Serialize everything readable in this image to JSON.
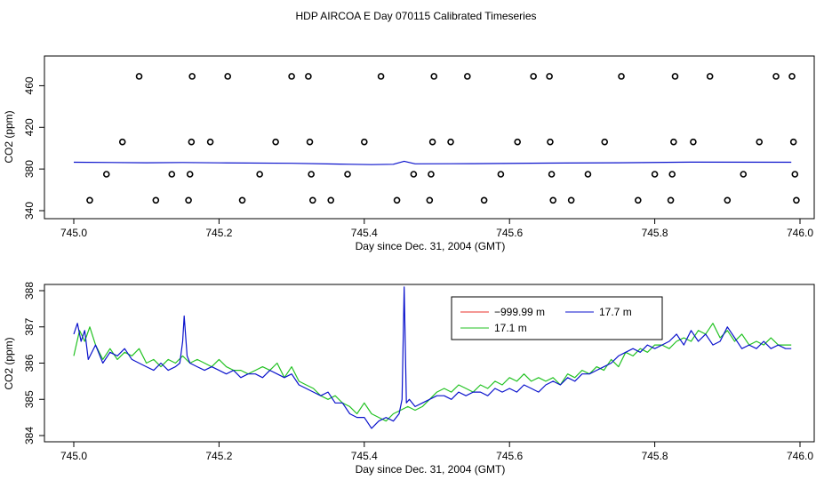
{
  "title": "HDP AIRCOA E  Day 070115  Calibrated Timeseries",
  "colors": {
    "red": "#e8302a",
    "green": "#22c222",
    "blue": "#0a12cc",
    "axis": "#000000"
  },
  "chart_data": [
    {
      "type": "scatter",
      "xlabel": "Day since Dec. 31, 2004 (GMT)",
      "ylabel": "CO2 (ppm)",
      "xlim": [
        745.0,
        746.0
      ],
      "ylim": [
        340,
        480
      ],
      "xticks": [
        "745.0",
        "745.2",
        "745.4",
        "745.6",
        "745.8",
        "746.0"
      ],
      "yticks": [
        "340",
        "380",
        "420",
        "460"
      ],
      "grid": false,
      "series": [
        {
          "color": "black",
          "marker": "open-circle",
          "points": [
            [
              745.022,
              350
            ],
            [
              745.045,
              375
            ],
            [
              745.067,
              406
            ],
            [
              745.09,
              469
            ],
            [
              745.113,
              350
            ],
            [
              745.135,
              375
            ],
            [
              745.158,
              350
            ],
            [
              745.16,
              375
            ],
            [
              745.162,
              406
            ],
            [
              745.163,
              469
            ],
            [
              745.188,
              406
            ],
            [
              745.212,
              469
            ],
            [
              745.232,
              350
            ],
            [
              745.256,
              375
            ],
            [
              745.278,
              406
            ],
            [
              745.3,
              469
            ],
            [
              745.323,
              469
            ],
            [
              745.325,
              406
            ],
            [
              745.327,
              375
            ],
            [
              745.329,
              350
            ],
            [
              745.354,
              350
            ],
            [
              745.377,
              375
            ],
            [
              745.4,
              406
            ],
            [
              745.423,
              469
            ],
            [
              745.445,
              350
            ],
            [
              745.468,
              375
            ],
            [
              745.49,
              350
            ],
            [
              745.492,
              375
            ],
            [
              745.494,
              406
            ],
            [
              745.496,
              469
            ],
            [
              745.519,
              406
            ],
            [
              745.542,
              469
            ],
            [
              745.565,
              350
            ],
            [
              745.588,
              375
            ],
            [
              745.611,
              406
            ],
            [
              745.633,
              469
            ],
            [
              745.655,
              469
            ],
            [
              745.656,
              406
            ],
            [
              745.658,
              375
            ],
            [
              745.66,
              350
            ],
            [
              745.685,
              350
            ],
            [
              745.708,
              375
            ],
            [
              745.731,
              406
            ],
            [
              745.754,
              469
            ],
            [
              745.777,
              350
            ],
            [
              745.8,
              375
            ],
            [
              745.822,
              350
            ],
            [
              745.824,
              375
            ],
            [
              745.826,
              406
            ],
            [
              745.828,
              469
            ],
            [
              745.853,
              406
            ],
            [
              745.876,
              469
            ],
            [
              745.9,
              350
            ],
            [
              745.922,
              375
            ],
            [
              745.944,
              406
            ],
            [
              745.967,
              469
            ],
            [
              745.989,
              469
            ],
            [
              745.991,
              406
            ],
            [
              745.993,
              375
            ],
            [
              745.995,
              350
            ]
          ]
        },
        {
          "color": "blue",
          "line": true,
          "points": [
            [
              745.0,
              386.5
            ],
            [
              745.1,
              386.0
            ],
            [
              745.15,
              386.3
            ],
            [
              745.2,
              385.9
            ],
            [
              745.3,
              385.5
            ],
            [
              745.38,
              384.6
            ],
            [
              745.41,
              384.2
            ],
            [
              745.44,
              384.6
            ],
            [
              745.455,
              387.5
            ],
            [
              745.47,
              385.0
            ],
            [
              745.55,
              385.2
            ],
            [
              745.65,
              385.7
            ],
            [
              745.75,
              386.0
            ],
            [
              745.85,
              386.6
            ],
            [
              745.988,
              386.5
            ]
          ]
        }
      ]
    },
    {
      "type": "line",
      "xlabel": "Day since Dec. 31, 2004 (GMT)",
      "ylabel": "CO2 (ppm)",
      "xlim": [
        745.0,
        746.0
      ],
      "ylim": [
        384,
        388
      ],
      "xticks": [
        "745.0",
        "745.2",
        "745.4",
        "745.6",
        "745.8",
        "746.0"
      ],
      "yticks": [
        "384",
        "385",
        "386",
        "387",
        "388"
      ],
      "grid": false,
      "legend": {
        "position": "top-right",
        "entries": [
          {
            "label": "−999.99 m",
            "color": "red"
          },
          {
            "label": "17.7 m",
            "color": "blue"
          },
          {
            "label": "17.1 m",
            "color": "green"
          }
        ]
      },
      "series": [
        {
          "name": "17.7 m",
          "color": "blue",
          "x": [
            745.0,
            745.005,
            745.01,
            745.015,
            745.02,
            745.03,
            745.04,
            745.05,
            745.06,
            745.07,
            745.08,
            745.09,
            745.1,
            745.11,
            745.12,
            745.13,
            745.14,
            745.146,
            745.15,
            745.152,
            745.156,
            745.16,
            745.17,
            745.18,
            745.19,
            745.2,
            745.21,
            745.22,
            745.23,
            745.24,
            745.25,
            745.26,
            745.27,
            745.28,
            745.29,
            745.3,
            745.31,
            745.32,
            745.33,
            745.34,
            745.35,
            745.36,
            745.37,
            745.38,
            745.39,
            745.4,
            745.41,
            745.42,
            745.43,
            745.44,
            745.448,
            745.452,
            745.455,
            745.458,
            745.462,
            745.47,
            745.48,
            745.49,
            745.5,
            745.51,
            745.52,
            745.53,
            745.54,
            745.55,
            745.56,
            745.57,
            745.58,
            745.59,
            745.6,
            745.61,
            745.62,
            745.63,
            745.64,
            745.65,
            745.66,
            745.67,
            745.68,
            745.69,
            745.7,
            745.71,
            745.72,
            745.73,
            745.74,
            745.75,
            745.76,
            745.77,
            745.78,
            745.79,
            745.8,
            745.81,
            745.82,
            745.83,
            745.84,
            745.85,
            745.86,
            745.87,
            745.88,
            745.89,
            745.9,
            745.91,
            745.92,
            745.93,
            745.94,
            745.95,
            745.96,
            745.97,
            745.98,
            745.988
          ],
          "y": [
            386.8,
            387.1,
            386.6,
            386.9,
            386.1,
            386.5,
            386.0,
            386.3,
            386.2,
            386.4,
            386.1,
            386.0,
            385.9,
            385.8,
            386.0,
            385.8,
            385.9,
            386.0,
            386.6,
            387.3,
            386.2,
            386.0,
            385.9,
            385.8,
            385.9,
            385.8,
            385.7,
            385.8,
            385.6,
            385.7,
            385.7,
            385.6,
            385.8,
            385.7,
            385.6,
            385.7,
            385.4,
            385.3,
            385.2,
            385.1,
            385.2,
            384.9,
            384.9,
            384.6,
            384.5,
            384.5,
            384.2,
            384.4,
            384.5,
            384.4,
            384.6,
            385.0,
            388.1,
            384.9,
            385.0,
            384.8,
            384.9,
            385.0,
            385.1,
            385.1,
            385.0,
            385.2,
            385.1,
            385.2,
            385.2,
            385.1,
            385.3,
            385.2,
            385.3,
            385.2,
            385.4,
            385.3,
            385.2,
            385.4,
            385.5,
            385.4,
            385.6,
            385.5,
            385.7,
            385.7,
            385.8,
            385.9,
            386.0,
            386.2,
            386.3,
            386.4,
            386.3,
            386.5,
            386.4,
            386.5,
            386.6,
            386.8,
            386.5,
            386.9,
            386.6,
            386.8,
            386.5,
            386.6,
            387.0,
            386.7,
            386.4,
            386.5,
            386.4,
            386.6,
            386.4,
            386.5,
            386.4,
            386.4
          ]
        },
        {
          "name": "17.1 m",
          "color": "green",
          "x": [
            745.0,
            745.008,
            745.015,
            745.022,
            745.03,
            745.04,
            745.05,
            745.06,
            745.07,
            745.08,
            745.09,
            745.1,
            745.11,
            745.12,
            745.13,
            745.14,
            745.15,
            745.16,
            745.17,
            745.18,
            745.19,
            745.2,
            745.21,
            745.22,
            745.23,
            745.24,
            745.25,
            745.26,
            745.27,
            745.28,
            745.29,
            745.3,
            745.31,
            745.32,
            745.33,
            745.34,
            745.35,
            745.36,
            745.37,
            745.38,
            745.39,
            745.4,
            745.41,
            745.42,
            745.43,
            745.44,
            745.45,
            745.46,
            745.47,
            745.48,
            745.49,
            745.5,
            745.51,
            745.52,
            745.53,
            745.54,
            745.55,
            745.56,
            745.57,
            745.58,
            745.59,
            745.6,
            745.61,
            745.62,
            745.63,
            745.64,
            745.65,
            745.66,
            745.67,
            745.68,
            745.69,
            745.7,
            745.71,
            745.72,
            745.73,
            745.74,
            745.75,
            745.76,
            745.77,
            745.78,
            745.79,
            745.8,
            745.81,
            745.82,
            745.83,
            745.84,
            745.85,
            745.86,
            745.87,
            745.88,
            745.89,
            745.9,
            745.91,
            745.92,
            745.93,
            745.94,
            745.95,
            745.96,
            745.97,
            745.988
          ],
          "y": [
            386.2,
            386.9,
            386.6,
            387.0,
            386.5,
            386.1,
            386.4,
            386.1,
            386.3,
            386.2,
            386.4,
            386.0,
            386.1,
            385.9,
            386.1,
            386.0,
            386.2,
            386.0,
            386.1,
            386.0,
            385.9,
            386.1,
            385.9,
            385.8,
            385.8,
            385.7,
            385.8,
            385.9,
            385.8,
            386.0,
            385.6,
            385.9,
            385.5,
            385.4,
            385.3,
            385.1,
            385.0,
            385.1,
            384.9,
            384.8,
            384.6,
            384.9,
            384.6,
            384.5,
            384.4,
            384.6,
            384.7,
            384.8,
            384.7,
            384.8,
            385.0,
            385.2,
            385.3,
            385.2,
            385.4,
            385.3,
            385.2,
            385.4,
            385.3,
            385.5,
            385.4,
            385.6,
            385.5,
            385.7,
            385.5,
            385.6,
            385.5,
            385.6,
            385.4,
            385.7,
            385.6,
            385.8,
            385.7,
            385.9,
            385.8,
            386.1,
            385.9,
            386.3,
            386.2,
            386.4,
            386.3,
            386.5,
            386.5,
            386.4,
            386.6,
            386.7,
            386.6,
            386.9,
            386.8,
            387.1,
            386.7,
            386.9,
            386.6,
            386.8,
            386.5,
            386.6,
            386.5,
            386.7,
            386.5,
            386.5
          ]
        }
      ]
    }
  ]
}
